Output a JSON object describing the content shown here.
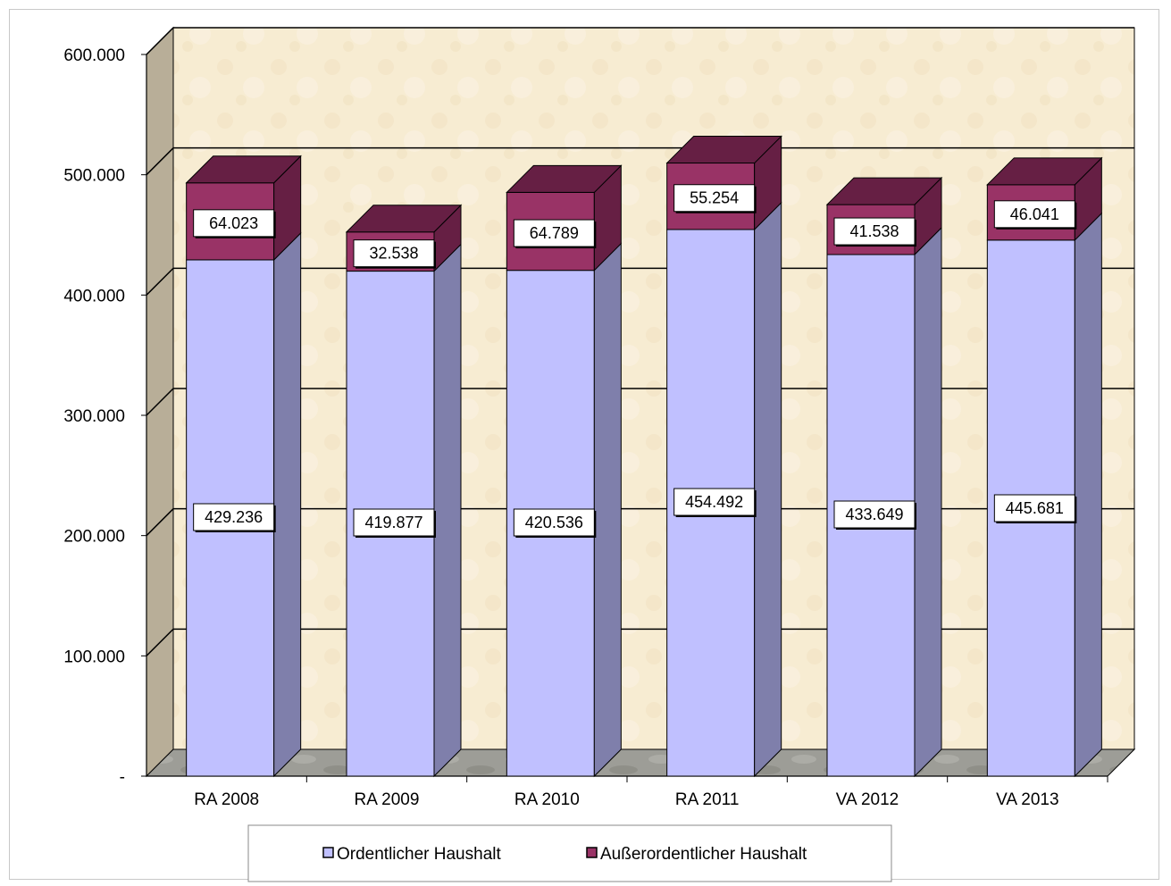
{
  "chart_data": {
    "type": "bar",
    "stacked": true,
    "three_d": true,
    "categories": [
      "RA 2008",
      "RA 2009",
      "RA 2010",
      "RA 2011",
      "VA 2012",
      "VA 2013"
    ],
    "series": [
      {
        "name": "Ordentlicher Haushalt",
        "color": "#c0c0ff",
        "side_color": "#7f7fab",
        "values": [
          429236,
          419877,
          420536,
          454492,
          433649,
          445681
        ],
        "labels": [
          "429.236",
          "419.877",
          "420.536",
          "454.492",
          "433.649",
          "445.681"
        ]
      },
      {
        "name": "Außerordentlicher Haushalt",
        "color": "#993366",
        "side_color": "#661f44",
        "values": [
          64023,
          32538,
          64789,
          55254,
          41538,
          46041
        ],
        "labels": [
          "64.023",
          "32.538",
          "64.789",
          "55.254",
          "41.538",
          "46.041"
        ]
      }
    ],
    "ylim": [
      0,
      600000
    ],
    "yticks": [
      0,
      100000,
      200000,
      300000,
      400000,
      500000,
      600000
    ],
    "ytick_labels": [
      "-",
      "100.000",
      "200.000",
      "300.000",
      "400.000",
      "500.000",
      "600.000"
    ],
    "xlabel": "",
    "ylabel": "",
    "grid": true,
    "legend_position": "bottom",
    "wall_color": "#f7ecd2",
    "floor_color": "#9a9a94"
  }
}
